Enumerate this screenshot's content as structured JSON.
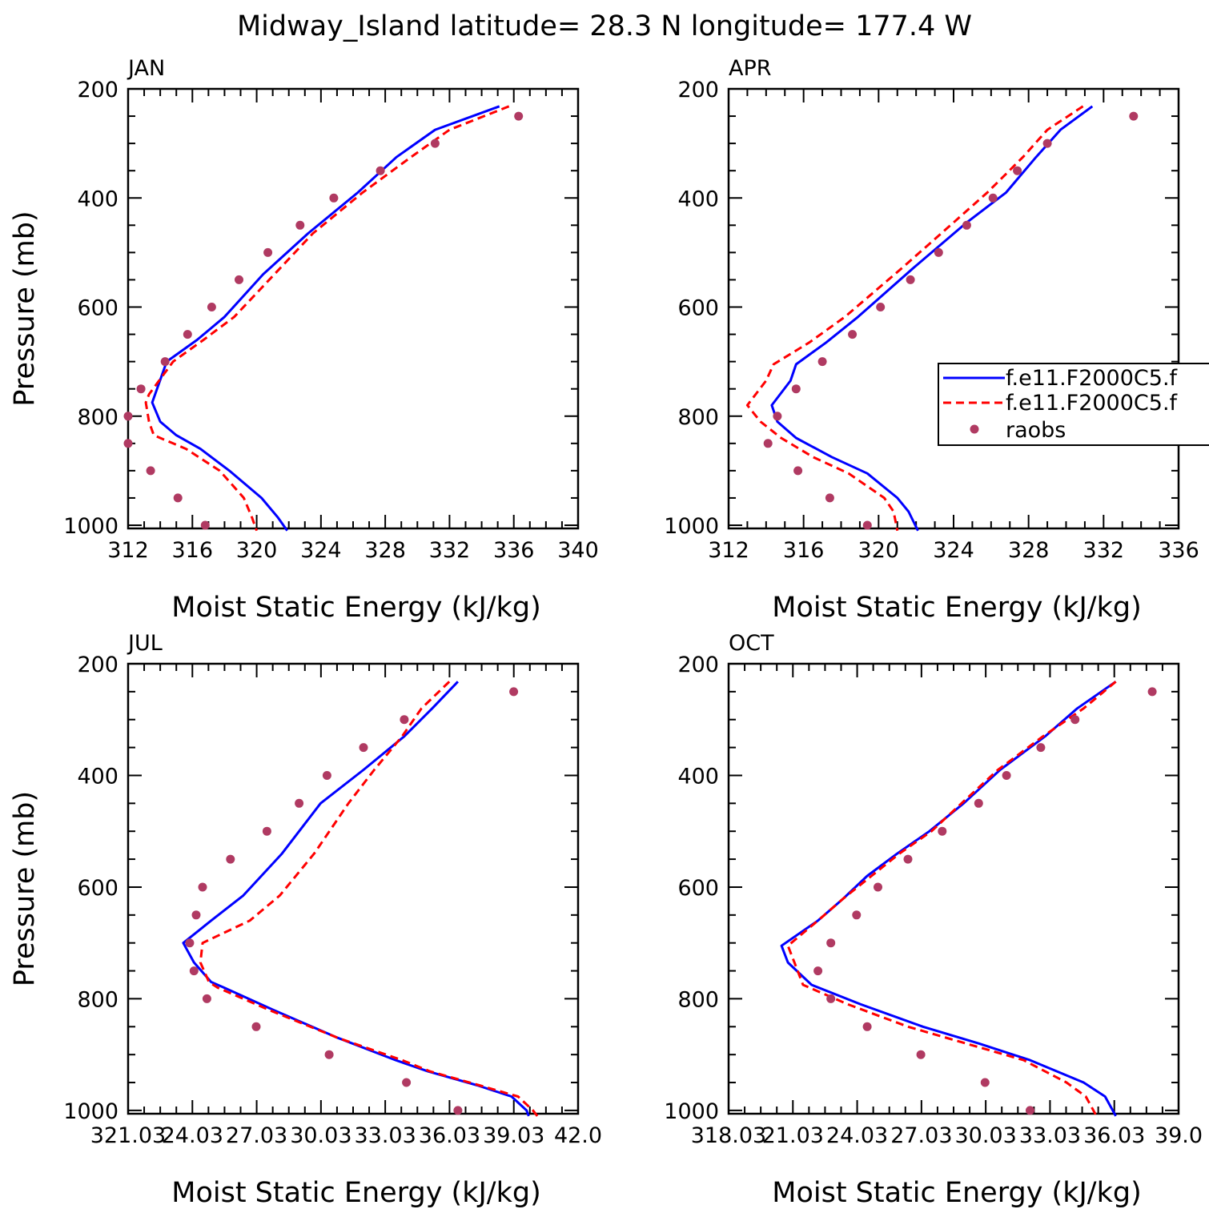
{
  "title": "Midway_Island  latitude= 28.3 N longitude= 177.4 W",
  "legend": {
    "entries": [
      "f.e11.F2000C5.f",
      "f.e11.F2000C5.f",
      "raobs"
    ],
    "placement": "right of APR panel"
  },
  "colors": {
    "model1": "#0000ff",
    "model2": "#ff0000",
    "raobs": "#b03a62"
  },
  "chart_data": [
    {
      "type": "line",
      "panel": "JAN",
      "xlabel": "Moist Static Energy (kJ/kg)",
      "ylabel": "Pressure (mb)",
      "xlim": [
        312,
        340
      ],
      "ylim": [
        1000,
        200
      ],
      "y_ticks": [
        200,
        400,
        600,
        800,
        1000
      ],
      "x_ticks": [
        312,
        316,
        320,
        324,
        328,
        332,
        336,
        340
      ],
      "x_tick_labels": [
        "312",
        "316",
        "320",
        "324",
        "328",
        "332",
        "336",
        "340"
      ],
      "series": [
        {
          "name": "f.e11.F2000C5.f",
          "style": "solid",
          "color": "#0000ff",
          "points": [
            [
              335.1,
              232
            ],
            [
              331.1,
              275
            ],
            [
              328.7,
              325
            ],
            [
              326.3,
              390
            ],
            [
              323.2,
              465
            ],
            [
              320.4,
              540
            ],
            [
              318.0,
              618
            ],
            [
              316.3,
              660
            ],
            [
              314.4,
              700
            ],
            [
              313.5,
              775
            ],
            [
              314.0,
              810
            ],
            [
              315.0,
              835
            ],
            [
              316.5,
              860
            ],
            [
              318.3,
              900
            ],
            [
              320.3,
              950
            ],
            [
              321.3,
              985
            ],
            [
              321.9,
              1010
            ]
          ]
        },
        {
          "name": "f.e11.F2000C5.f",
          "style": "dashed",
          "color": "#ff0000",
          "points": [
            [
              335.7,
              232
            ],
            [
              332.0,
              275
            ],
            [
              329.6,
              325
            ],
            [
              326.6,
              390
            ],
            [
              323.5,
              465
            ],
            [
              321.1,
              540
            ],
            [
              318.6,
              618
            ],
            [
              316.7,
              660
            ],
            [
              314.8,
              700
            ],
            [
              313.3,
              760
            ],
            [
              313.1,
              775
            ],
            [
              313.3,
              810
            ],
            [
              313.6,
              835
            ],
            [
              315.6,
              860
            ],
            [
              317.7,
              900
            ],
            [
              319.2,
              950
            ],
            [
              319.7,
              985
            ],
            [
              320.0,
              1010
            ]
          ]
        }
      ],
      "raobs": [
        [
          336.3,
          250
        ],
        [
          331.1,
          300
        ],
        [
          327.7,
          350
        ],
        [
          324.8,
          400
        ],
        [
          322.7,
          450
        ],
        [
          320.7,
          500
        ],
        [
          318.9,
          550
        ],
        [
          317.2,
          600
        ],
        [
          315.7,
          650
        ],
        [
          314.3,
          700
        ],
        [
          312.8,
          750
        ],
        [
          312.0,
          800
        ],
        [
          312.0,
          850
        ],
        [
          313.4,
          900
        ],
        [
          315.1,
          950
        ],
        [
          316.8,
          1000
        ]
      ]
    },
    {
      "type": "line",
      "panel": "APR",
      "xlabel": "Moist Static Energy (kJ/kg)",
      "ylabel": "",
      "xlim": [
        312,
        336
      ],
      "ylim": [
        1000,
        200
      ],
      "y_ticks": [
        200,
        400,
        600,
        800,
        1000
      ],
      "x_ticks": [
        312,
        316,
        320,
        324,
        328,
        332,
        336
      ],
      "x_tick_labels": [
        "312",
        "316",
        "320",
        "324",
        "328",
        "332",
        "336"
      ],
      "series": [
        {
          "name": "f.e11.F2000C5.f",
          "style": "solid",
          "color": "#0000ff",
          "points": [
            [
              331.4,
              232
            ],
            [
              329.7,
              275
            ],
            [
              328.4,
              325
            ],
            [
              326.8,
              390
            ],
            [
              324.7,
              445
            ],
            [
              321.8,
              530
            ],
            [
              318.9,
              618
            ],
            [
              317.2,
              665
            ],
            [
              315.6,
              705
            ],
            [
              315.3,
              735
            ],
            [
              314.3,
              780
            ],
            [
              314.6,
              810
            ],
            [
              315.6,
              840
            ],
            [
              317.5,
              875
            ],
            [
              319.4,
              905
            ],
            [
              321.0,
              950
            ],
            [
              321.6,
              975
            ],
            [
              322.1,
              1010
            ]
          ]
        },
        {
          "name": "f.e11.F2000C5.f",
          "style": "dashed",
          "color": "#ff0000",
          "points": [
            [
              330.9,
              232
            ],
            [
              329.0,
              275
            ],
            [
              327.7,
              325
            ],
            [
              325.8,
              390
            ],
            [
              324.0,
              445
            ],
            [
              321.2,
              530
            ],
            [
              318.2,
              618
            ],
            [
              316.3,
              665
            ],
            [
              314.4,
              705
            ],
            [
              314.0,
              735
            ],
            [
              313.0,
              780
            ],
            [
              313.7,
              810
            ],
            [
              314.8,
              840
            ],
            [
              316.5,
              875
            ],
            [
              318.4,
              905
            ],
            [
              320.3,
              950
            ],
            [
              320.8,
              975
            ],
            [
              321.0,
              1010
            ]
          ]
        }
      ],
      "raobs": [
        [
          333.6,
          250
        ],
        [
          329.0,
          300
        ],
        [
          327.4,
          350
        ],
        [
          326.1,
          400
        ],
        [
          324.7,
          450
        ],
        [
          323.2,
          500
        ],
        [
          321.7,
          550
        ],
        [
          320.1,
          600
        ],
        [
          318.6,
          650
        ],
        [
          317.0,
          700
        ],
        [
          315.6,
          750
        ],
        [
          314.6,
          800
        ],
        [
          314.1,
          850
        ],
        [
          315.7,
          900
        ],
        [
          317.4,
          950
        ],
        [
          319.4,
          1000
        ]
      ]
    },
    {
      "type": "line",
      "panel": "JUL",
      "xlabel": "Moist Static Energy (kJ/kg)",
      "ylabel": "Pressure (mb)",
      "xlim": [
        321.03,
        342.0
      ],
      "ylim": [
        1000,
        200
      ],
      "y_ticks": [
        200,
        400,
        600,
        800,
        1000
      ],
      "x_ticks": [
        321.03,
        324.03,
        327.03,
        330.03,
        333.03,
        336.03,
        339.03,
        342.0
      ],
      "x_tick_labels": [
        "321.03",
        "24.03",
        "27.03",
        "30.03",
        "33.03",
        "36.03",
        "39.03",
        "42.0"
      ],
      "series": [
        {
          "name": "f.e11.F2000C5.f",
          "style": "solid",
          "color": "#0000ff",
          "points": [
            [
              336.4,
              232
            ],
            [
              335.2,
              280
            ],
            [
              333.9,
              330
            ],
            [
              332.0,
              390
            ],
            [
              330.0,
              450
            ],
            [
              328.2,
              540
            ],
            [
              326.4,
              615
            ],
            [
              324.9,
              660
            ],
            [
              323.6,
              700
            ],
            [
              324.1,
              735
            ],
            [
              324.9,
              770
            ],
            [
              325.5,
              780
            ],
            [
              327.8,
              820
            ],
            [
              330.8,
              870
            ],
            [
              333.5,
              910
            ],
            [
              335.0,
              930
            ],
            [
              337.3,
              955
            ],
            [
              338.9,
              975
            ],
            [
              339.6,
              1000
            ],
            [
              339.7,
              1010
            ]
          ]
        },
        {
          "name": "f.e11.F2000C5.f",
          "style": "dashed",
          "color": "#ff0000",
          "points": [
            [
              336.0,
              232
            ],
            [
              334.7,
              280
            ],
            [
              333.8,
              330
            ],
            [
              332.5,
              390
            ],
            [
              331.3,
              450
            ],
            [
              329.7,
              540
            ],
            [
              328.1,
              615
            ],
            [
              326.7,
              660
            ],
            [
              324.5,
              700
            ],
            [
              324.4,
              735
            ],
            [
              324.8,
              770
            ],
            [
              325.2,
              780
            ],
            [
              327.6,
              820
            ],
            [
              330.8,
              870
            ],
            [
              333.8,
              910
            ],
            [
              335.1,
              930
            ],
            [
              337.4,
              955
            ],
            [
              339.2,
              975
            ],
            [
              339.9,
              1000
            ],
            [
              340.1,
              1010
            ]
          ]
        }
      ],
      "raobs": [
        [
          339.0,
          250
        ],
        [
          333.9,
          300
        ],
        [
          332.0,
          350
        ],
        [
          330.3,
          400
        ],
        [
          329.0,
          450
        ],
        [
          327.5,
          500
        ],
        [
          325.8,
          550
        ],
        [
          324.5,
          600
        ],
        [
          324.2,
          650
        ],
        [
          323.9,
          700
        ],
        [
          324.1,
          750
        ],
        [
          324.7,
          800
        ],
        [
          327.0,
          850
        ],
        [
          330.4,
          900
        ],
        [
          334.0,
          950
        ],
        [
          336.4,
          1000
        ]
      ]
    },
    {
      "type": "line",
      "panel": "OCT",
      "xlabel": "Moist Static Energy (kJ/kg)",
      "ylabel": "",
      "xlim": [
        318.03,
        339.03
      ],
      "ylim": [
        1000,
        200
      ],
      "y_ticks": [
        200,
        400,
        600,
        800,
        1000
      ],
      "x_ticks": [
        318.03,
        321.03,
        324.03,
        327.03,
        330.03,
        333.03,
        336.03,
        339.03
      ],
      "x_tick_labels": [
        "318.03",
        "21.03",
        "24.03",
        "27.03",
        "30.03",
        "33.03",
        "36.03",
        "39.0"
      ],
      "series": [
        {
          "name": "f.e11.F2000C5.f",
          "style": "solid",
          "color": "#0000ff",
          "points": [
            [
              336.1,
              232
            ],
            [
              334.3,
              280
            ],
            [
              332.8,
              330
            ],
            [
              330.7,
              390
            ],
            [
              329.0,
              450
            ],
            [
              327.4,
              500
            ],
            [
              325.9,
              540
            ],
            [
              324.5,
              580
            ],
            [
              323.4,
              620
            ],
            [
              322.2,
              660
            ],
            [
              320.5,
              705
            ],
            [
              320.8,
              735
            ],
            [
              321.9,
              775
            ],
            [
              324.2,
              810
            ],
            [
              327.1,
              850
            ],
            [
              329.7,
              880
            ],
            [
              332.1,
              910
            ],
            [
              334.6,
              950
            ],
            [
              335.6,
              975
            ],
            [
              336.1,
              1010
            ]
          ]
        },
        {
          "name": "f.e11.F2000C5.f",
          "style": "dashed",
          "color": "#ff0000",
          "points": [
            [
              336.1,
              232
            ],
            [
              334.6,
              280
            ],
            [
              332.7,
              330
            ],
            [
              330.6,
              390
            ],
            [
              328.9,
              450
            ],
            [
              327.5,
              500
            ],
            [
              326.0,
              540
            ],
            [
              324.7,
              580
            ],
            [
              323.4,
              620
            ],
            [
              322.2,
              660
            ],
            [
              320.8,
              705
            ],
            [
              321.1,
              735
            ],
            [
              321.5,
              775
            ],
            [
              323.6,
              810
            ],
            [
              326.4,
              850
            ],
            [
              329.1,
              880
            ],
            [
              331.8,
              910
            ],
            [
              333.8,
              950
            ],
            [
              334.7,
              975
            ],
            [
              335.2,
              1010
            ]
          ]
        }
      ],
      "raobs": [
        [
          337.8,
          250
        ],
        [
          334.2,
          300
        ],
        [
          332.6,
          350
        ],
        [
          331.0,
          400
        ],
        [
          329.7,
          450
        ],
        [
          328.0,
          500
        ],
        [
          326.4,
          550
        ],
        [
          325.0,
          600
        ],
        [
          324.0,
          650
        ],
        [
          322.8,
          700
        ],
        [
          322.2,
          750
        ],
        [
          322.8,
          800
        ],
        [
          324.5,
          850
        ],
        [
          327.0,
          900
        ],
        [
          330.0,
          950
        ],
        [
          332.1,
          1000
        ]
      ]
    }
  ]
}
